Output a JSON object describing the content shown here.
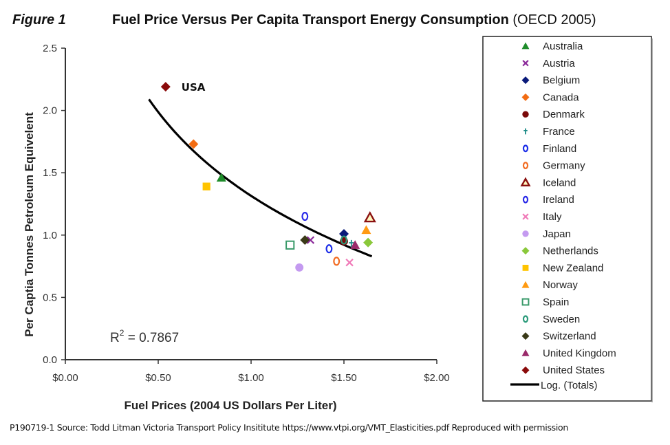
{
  "header": {
    "figure_label": "Figure 1",
    "title_bold": "Fuel Price Versus Per Capita Transport Energy Consumption",
    "title_normal": " (OECD 2005)"
  },
  "source_note": "P190719-1 Source: Todd Litman Victoria Transport Policy Insititute https://www.vtpi.org/VMT_Elasticities.pdf Reproduced with permission",
  "chart_data": {
    "type": "scatter",
    "title": "Fuel Price Versus Per Capita Transport Energy Consumption (OECD 2005)",
    "xlabel": "Fuel Prices (2004 US Dollars Per Liter)",
    "ylabel": "Per Captia Tonnes Petroleum Equivelent",
    "xlim": [
      0,
      2
    ],
    "ylim": [
      0,
      2.5
    ],
    "xticks": [
      0,
      0.5,
      1,
      1.5,
      2
    ],
    "xtick_labels": [
      "$0.00",
      "$0.50",
      "$1.00",
      "$1.50",
      "$2.00"
    ],
    "yticks": [
      0,
      0.5,
      1,
      1.5,
      2,
      2.5
    ],
    "ytick_labels": [
      "0.0",
      "0.5",
      "1.0",
      "1.5",
      "2.0",
      "2.5"
    ],
    "grid": false,
    "legend_position": "right",
    "annotations": [
      {
        "text": "USA",
        "x": 0.54,
        "y": 2.19
      },
      {
        "text_main": "R",
        "text_sup": "2",
        "text_rest": " = 0.7867"
      }
    ],
    "series": [
      {
        "name": "Australia",
        "marker": "triangle",
        "color": "#1e8c2a",
        "fill": true,
        "x": 0.84,
        "y": 1.46
      },
      {
        "name": "Austria",
        "marker": "x",
        "color": "#8b2a9a",
        "fill": true,
        "x": 1.32,
        "y": 0.96
      },
      {
        "name": "Belgium",
        "marker": "diamond",
        "color": "#0a1a7a",
        "fill": true,
        "x": 1.5,
        "y": 1.01
      },
      {
        "name": "Canada",
        "marker": "diamond",
        "color": "#f26c12",
        "fill": true,
        "x": 0.69,
        "y": 1.73
      },
      {
        "name": "Denmark",
        "marker": "circle",
        "color": "#7a0a0a",
        "fill": true,
        "x": 1.5,
        "y": 0.95
      },
      {
        "name": "France",
        "marker": "plus",
        "color": "#1a8a86",
        "fill": true,
        "x": 1.54,
        "y": 0.93
      },
      {
        "name": "Finland",
        "marker": "circle",
        "color": "#1c2ee8",
        "fill": false,
        "x": 1.42,
        "y": 0.89
      },
      {
        "name": "Germany",
        "marker": "circle",
        "color": "#f26c22",
        "fill": false,
        "x": 1.46,
        "y": 0.79
      },
      {
        "name": "Iceland",
        "marker": "triangle",
        "color": "#8a1010",
        "fill": false,
        "x": 1.64,
        "y": 1.14
      },
      {
        "name": "Ireland",
        "marker": "circle",
        "color": "#2a2ae8",
        "fill": false,
        "x": 1.29,
        "y": 1.15
      },
      {
        "name": "Italy",
        "marker": "x",
        "color": "#f07ab8",
        "fill": true,
        "x": 1.53,
        "y": 0.78
      },
      {
        "name": "Japan",
        "marker": "circle",
        "color": "#c49af0",
        "fill": true,
        "x": 1.26,
        "y": 0.74
      },
      {
        "name": "Netherlands",
        "marker": "diamond",
        "color": "#8ac83a",
        "fill": true,
        "x": 1.63,
        "y": 0.94
      },
      {
        "name": "New Zealand",
        "marker": "square",
        "color": "#ffc400",
        "fill": true,
        "x": 0.76,
        "y": 1.39
      },
      {
        "name": "Norway",
        "marker": "triangle",
        "color": "#ff9a12",
        "fill": true,
        "x": 1.62,
        "y": 1.04
      },
      {
        "name": "Spain",
        "marker": "square",
        "color": "#3a9a6a",
        "fill": false,
        "x": 1.21,
        "y": 0.92
      },
      {
        "name": "Sweden",
        "marker": "circle",
        "color": "#2a9a7a",
        "fill": false,
        "x": 1.5,
        "y": 0.96
      },
      {
        "name": "Switzerland",
        "marker": "diamond",
        "color": "#3a3a18",
        "fill": true,
        "x": 1.29,
        "y": 0.96
      },
      {
        "name": "United Kingdom",
        "marker": "triangle",
        "color": "#9a2a6a",
        "fill": true,
        "x": 1.56,
        "y": 0.92
      },
      {
        "name": "United States",
        "marker": "diamond",
        "color": "#8a0a0a",
        "fill": true,
        "x": 0.54,
        "y": 2.19
      }
    ],
    "trendline": {
      "name": "Log. (Totals)",
      "type": "logarithmic",
      "intercept": 1.315,
      "slope": -0.97,
      "x_range": [
        0.45,
        1.65
      ],
      "r_squared": 0.7867,
      "color": "#000000"
    }
  }
}
